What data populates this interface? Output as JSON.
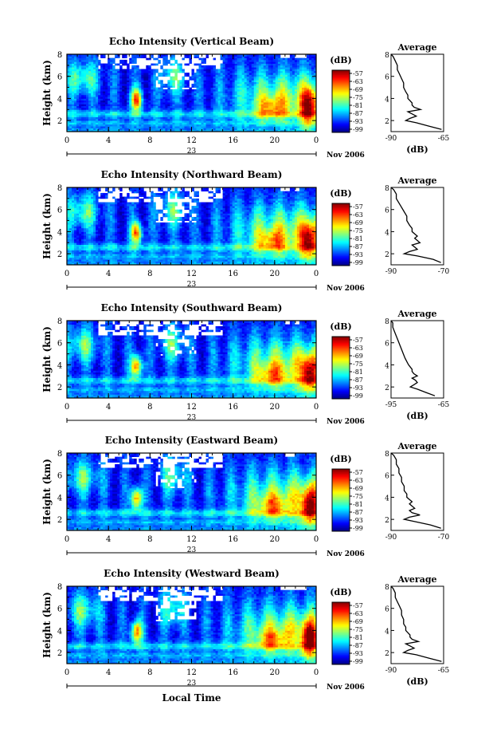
{
  "figure": {
    "xlabel_bottom": "Local Time",
    "date_label": "Nov 2006",
    "day_label": "23"
  },
  "chart_data": [
    {
      "type": "heatmap",
      "title": "Echo Intensity (Vertical Beam)",
      "ylabel": "Height (km)",
      "x_ticks": [
        "0",
        "4",
        "8",
        "12",
        "16",
        "20",
        "0"
      ],
      "xlim": [
        0,
        24
      ],
      "y_ticks": [
        "2",
        "4",
        "6",
        "8"
      ],
      "ylim": [
        1,
        8
      ],
      "colorbar": {
        "unit": "(dB)",
        "ticks": [
          "-57",
          "-63",
          "-69",
          "-75",
          "-81",
          "-87",
          "-93",
          "-99"
        ]
      },
      "profile": {
        "type": "line",
        "title": "Average",
        "xlabel": "(dB)",
        "x_ticks": [
          "-90",
          "-65"
        ],
        "xlim": [
          -90,
          -65
        ],
        "y_ticks": [
          "2",
          "4",
          "6",
          "8"
        ],
        "ylim": [
          1,
          8
        ],
        "height": [
          1.2,
          1.5,
          1.8,
          2.0,
          2.2,
          2.4,
          2.6,
          2.8,
          3.0,
          3.2,
          3.4,
          3.6,
          3.8,
          4.0,
          4.3,
          4.6,
          5.0,
          5.4,
          5.8,
          6.2,
          6.6,
          7.0,
          7.4,
          7.8,
          8.0
        ],
        "values": [
          -66,
          -72,
          -78,
          -83,
          -81,
          -78,
          -80,
          -82,
          -76,
          -79,
          -80,
          -80,
          -81,
          -82,
          -82,
          -83,
          -84,
          -84,
          -85,
          -86,
          -87,
          -87,
          -88,
          -89,
          -90
        ]
      }
    },
    {
      "type": "heatmap",
      "title": "Echo Intensity (Northward Beam)",
      "ylabel": "Height (km)",
      "x_ticks": [
        "0",
        "4",
        "8",
        "12",
        "16",
        "20",
        "0"
      ],
      "xlim": [
        0,
        24
      ],
      "y_ticks": [
        "2",
        "4",
        "6",
        "8"
      ],
      "ylim": [
        1,
        8
      ],
      "colorbar": {
        "unit": "(dB)",
        "ticks": [
          "-57",
          "-63",
          "-69",
          "-75",
          "-81",
          "-87",
          "-93",
          "-99"
        ]
      },
      "profile": {
        "type": "line",
        "title": "Average",
        "xlabel": "",
        "x_ticks": [
          "-90",
          "-70"
        ],
        "xlim": [
          -90,
          -70
        ],
        "y_ticks": [
          "2",
          "4",
          "6",
          "8"
        ],
        "ylim": [
          1,
          8
        ],
        "height": [
          1.2,
          1.5,
          1.8,
          2.0,
          2.2,
          2.4,
          2.6,
          2.8,
          3.0,
          3.2,
          3.4,
          3.6,
          3.8,
          4.0,
          4.3,
          4.6,
          5.0,
          5.4,
          5.8,
          6.2,
          6.6,
          7.0,
          7.4,
          7.8,
          8.0
        ],
        "values": [
          -71,
          -74,
          -80,
          -85,
          -83,
          -80,
          -81,
          -82,
          -79,
          -80,
          -81,
          -80,
          -81,
          -82,
          -82,
          -83,
          -84,
          -84,
          -85,
          -86,
          -87,
          -88,
          -88,
          -89,
          -90
        ]
      }
    },
    {
      "type": "heatmap",
      "title": "Echo Intensity (Southward Beam)",
      "ylabel": "Height (km)",
      "x_ticks": [
        "0",
        "4",
        "8",
        "12",
        "16",
        "20",
        "0"
      ],
      "xlim": [
        0,
        24
      ],
      "y_ticks": [
        "2",
        "4",
        "6",
        "8"
      ],
      "ylim": [
        1,
        8
      ],
      "colorbar": {
        "unit": "(dB)",
        "ticks": [
          "-57",
          "-63",
          "-69",
          "-75",
          "-81",
          "-87",
          "-93",
          "-99"
        ]
      },
      "profile": {
        "type": "line",
        "title": "Average",
        "xlabel": "(dB)",
        "x_ticks": [
          "-95",
          "-65"
        ],
        "xlim": [
          -95,
          -65
        ],
        "y_ticks": [
          "2",
          "4",
          "6",
          "8"
        ],
        "ylim": [
          1,
          8
        ],
        "height": [
          1.2,
          1.5,
          1.8,
          2.0,
          2.2,
          2.4,
          2.6,
          2.8,
          3.0,
          3.2,
          3.4,
          3.6,
          3.8,
          4.0,
          4.3,
          4.6,
          5.0,
          5.4,
          5.8,
          6.2,
          6.6,
          7.0,
          7.4,
          7.8,
          8.0
        ],
        "values": [
          -70,
          -75,
          -80,
          -84,
          -82,
          -80,
          -81,
          -83,
          -80,
          -82,
          -83,
          -83,
          -84,
          -85,
          -86,
          -87,
          -88,
          -89,
          -90,
          -91,
          -92,
          -93,
          -94,
          -94,
          -95
        ]
      }
    },
    {
      "type": "heatmap",
      "title": "Echo Intensity (Eastward Beam)",
      "ylabel": "Height (km)",
      "x_ticks": [
        "0",
        "4",
        "8",
        "12",
        "16",
        "20",
        "0"
      ],
      "xlim": [
        0,
        24
      ],
      "y_ticks": [
        "2",
        "4",
        "6",
        "8"
      ],
      "ylim": [
        1,
        8
      ],
      "colorbar": {
        "unit": "(dB)",
        "ticks": [
          "-57",
          "-63",
          "-69",
          "-75",
          "-81",
          "-87",
          "-93",
          "-99"
        ]
      },
      "profile": {
        "type": "line",
        "title": "Average",
        "xlabel": "",
        "x_ticks": [
          "-90",
          "-70"
        ],
        "xlim": [
          -90,
          -70
        ],
        "y_ticks": [
          "2",
          "4",
          "6",
          "8"
        ],
        "ylim": [
          1,
          8
        ],
        "height": [
          1.2,
          1.5,
          1.8,
          2.0,
          2.2,
          2.4,
          2.6,
          2.8,
          3.0,
          3.2,
          3.4,
          3.6,
          3.8,
          4.0,
          4.3,
          4.6,
          5.0,
          5.4,
          5.8,
          6.2,
          6.6,
          7.0,
          7.4,
          7.8,
          8.0
        ],
        "values": [
          -71,
          -75,
          -81,
          -85,
          -83,
          -79,
          -82,
          -83,
          -81,
          -82,
          -83,
          -82,
          -83,
          -84,
          -84,
          -85,
          -85,
          -86,
          -86,
          -87,
          -87,
          -88,
          -88,
          -89,
          -90
        ]
      }
    },
    {
      "type": "heatmap",
      "title": "Echo Intensity (Westward Beam)",
      "ylabel": "Height (km)",
      "x_ticks": [
        "0",
        "4",
        "8",
        "12",
        "16",
        "20",
        "0"
      ],
      "xlim": [
        0,
        24
      ],
      "y_ticks": [
        "2",
        "4",
        "6",
        "8"
      ],
      "ylim": [
        1,
        8
      ],
      "colorbar": {
        "unit": "(dB)",
        "ticks": [
          "-57",
          "-63",
          "-69",
          "-75",
          "-81",
          "-87",
          "-93",
          "-99"
        ]
      },
      "profile": {
        "type": "line",
        "title": "Average",
        "xlabel": "(dB)",
        "x_ticks": [
          "-90",
          "-65"
        ],
        "xlim": [
          -90,
          -65
        ],
        "y_ticks": [
          "2",
          "4",
          "6",
          "8"
        ],
        "ylim": [
          1,
          8
        ],
        "height": [
          1.2,
          1.5,
          1.8,
          2.0,
          2.2,
          2.4,
          2.6,
          2.8,
          3.0,
          3.2,
          3.4,
          3.6,
          3.8,
          4.0,
          4.3,
          4.6,
          5.0,
          5.4,
          5.8,
          6.2,
          6.6,
          7.0,
          7.4,
          7.8,
          8.0
        ],
        "values": [
          -66,
          -72,
          -78,
          -84,
          -82,
          -79,
          -81,
          -83,
          -77,
          -80,
          -81,
          -81,
          -82,
          -83,
          -83,
          -84,
          -84,
          -85,
          -85,
          -86,
          -87,
          -88,
          -88,
          -89,
          -90
        ]
      }
    }
  ]
}
